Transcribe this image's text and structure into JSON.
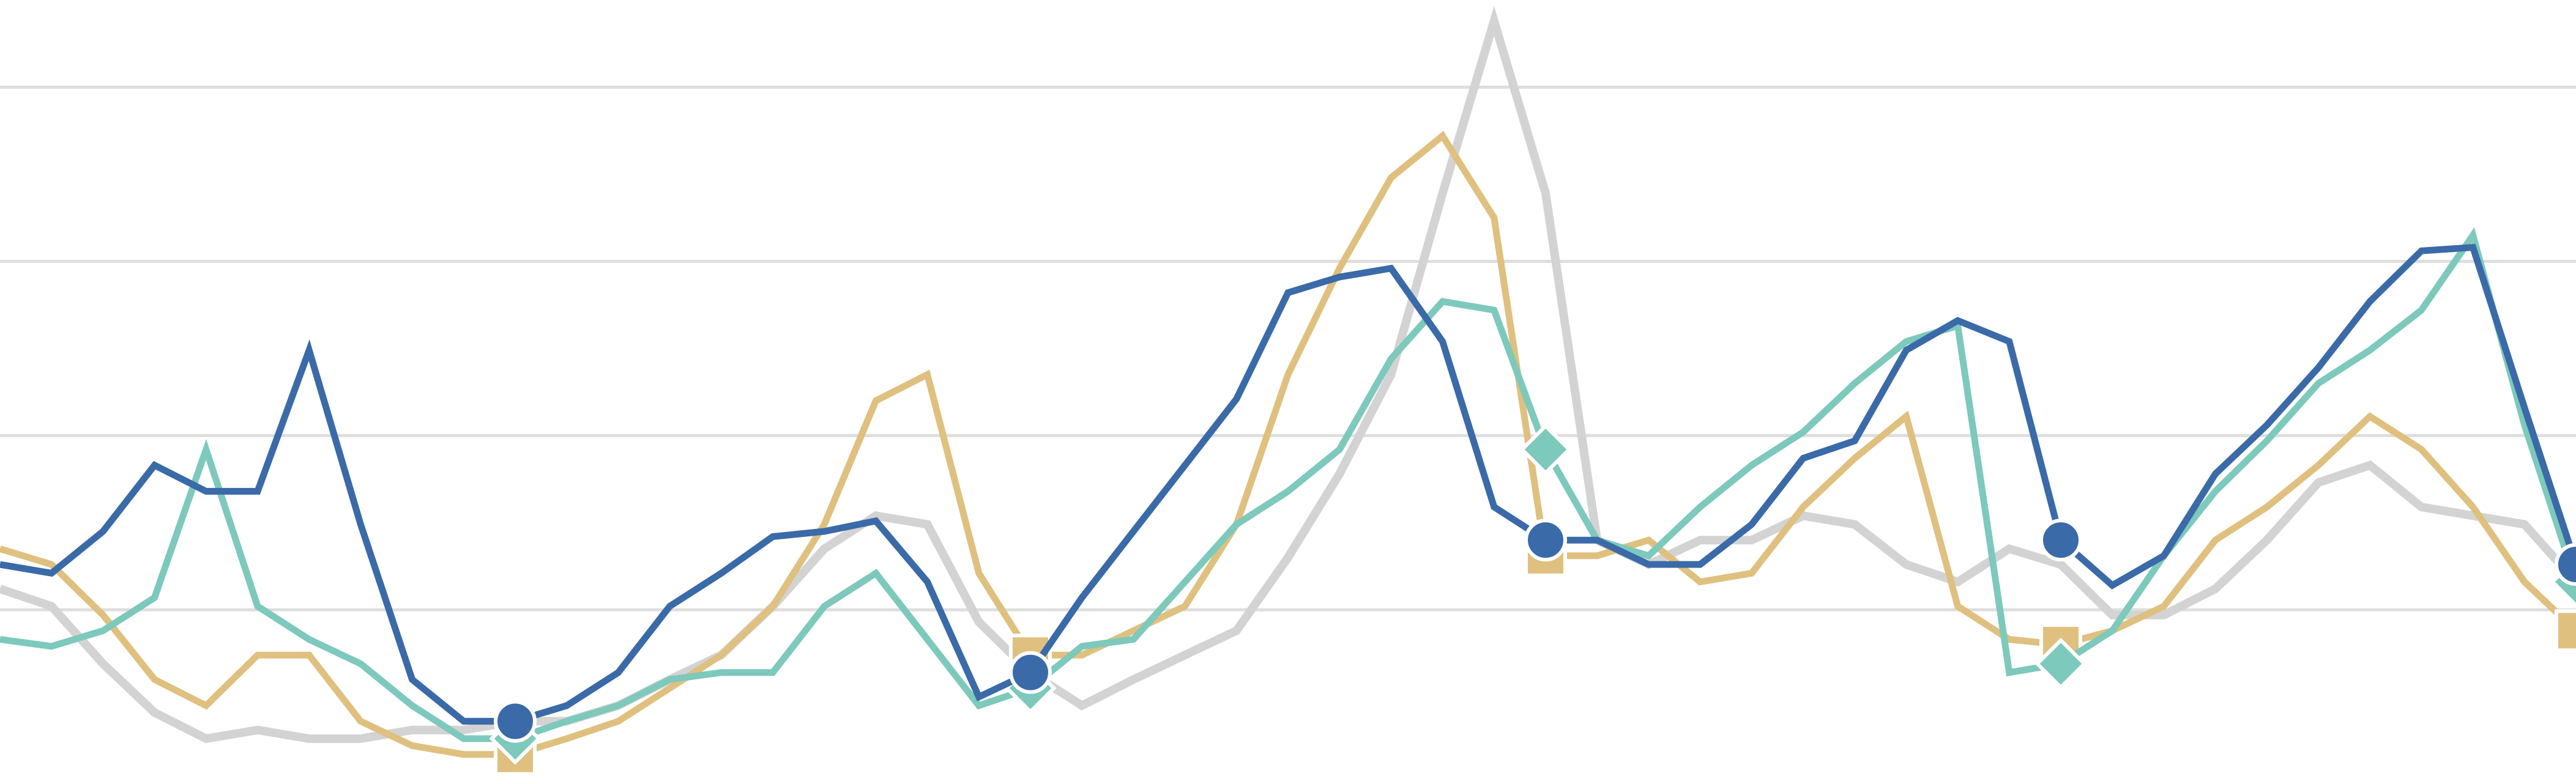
{
  "chart_data": {
    "type": "line",
    "grid": true,
    "ylim": [
      0,
      4.5
    ],
    "yticks": [
      1,
      2,
      3,
      4
    ],
    "series": [
      {
        "color": "#d3d3d3",
        "values": [
          1.12,
          1.02,
          0.69,
          0.41,
          0.26,
          0.31,
          0.26,
          0.26,
          0.31,
          0.31,
          0.36,
          0.36,
          0.45,
          0.6,
          0.74,
          1.02,
          1.35,
          1.54,
          1.49,
          0.93,
          0.64,
          0.45,
          0.6,
          0.74,
          0.88,
          1.3,
          1.78,
          2.35,
          3.39,
          4.38,
          3.39,
          1.4,
          1.26,
          1.4,
          1.4,
          1.54,
          1.49,
          1.26,
          1.16,
          1.35,
          1.26,
          0.97,
          0.97,
          1.12,
          1.4,
          1.73,
          1.83,
          1.59,
          1.54,
          1.49,
          1.16
        ]
      },
      {
        "color": "#dfc07f",
        "marker": "square",
        "values": [
          1.35,
          1.26,
          0.97,
          0.6,
          0.45,
          0.74,
          0.74,
          0.36,
          0.22,
          0.17,
          0.17,
          0.26,
          0.36,
          0.55,
          0.74,
          1.02,
          1.49,
          2.2,
          2.35,
          1.21,
          0.74,
          0.74,
          0.88,
          1.02,
          1.49,
          2.35,
          2.96,
          3.48,
          3.72,
          3.25,
          1.31,
          1.31,
          1.4,
          1.16,
          1.21,
          1.59,
          1.87,
          2.11,
          1.02,
          0.83,
          0.8,
          0.88,
          1.02,
          1.4,
          1.59,
          1.83,
          2.11,
          1.92,
          1.59,
          1.16,
          0.88
        ]
      },
      {
        "color": "#7dc9bc",
        "marker": "diamond",
        "values": [
          0.83,
          0.79,
          0.88,
          1.07,
          1.92,
          1.02,
          0.83,
          0.69,
          0.45,
          0.26,
          0.26,
          0.36,
          0.45,
          0.6,
          0.64,
          0.64,
          1.02,
          1.21,
          0.83,
          0.45,
          0.55,
          0.79,
          0.83,
          1.16,
          1.49,
          1.68,
          1.92,
          2.44,
          2.77,
          2.72,
          1.92,
          1.4,
          1.31,
          1.59,
          1.83,
          2.02,
          2.3,
          2.54,
          2.63,
          0.64,
          0.69,
          0.88,
          1.31,
          1.68,
          1.97,
          2.3,
          2.49,
          2.72,
          3.15,
          2.06,
          1.16
        ]
      },
      {
        "color": "#3a6aa8",
        "marker": "circle",
        "values": [
          1.26,
          1.21,
          1.45,
          1.83,
          1.68,
          1.68,
          2.49,
          1.49,
          0.6,
          0.36,
          0.36,
          0.45,
          0.64,
          1.02,
          1.21,
          1.42,
          1.45,
          1.51,
          1.16,
          0.5,
          0.64,
          1.07,
          1.45,
          1.83,
          2.21,
          2.82,
          2.91,
          2.96,
          2.54,
          1.59,
          1.4,
          1.4,
          1.26,
          1.26,
          1.49,
          1.87,
          1.97,
          2.49,
          2.66,
          2.54,
          1.4,
          1.14,
          1.31,
          1.78,
          2.06,
          2.39,
          2.77,
          3.06,
          3.08,
          2.16,
          1.26
        ]
      }
    ]
  }
}
